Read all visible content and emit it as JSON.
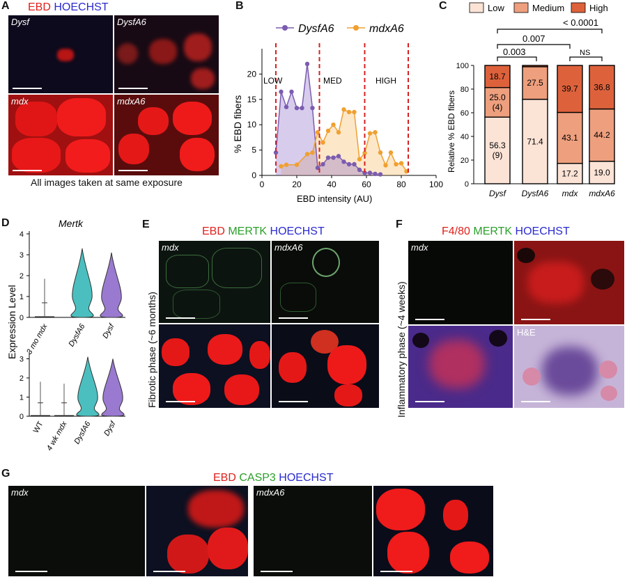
{
  "panelA": {
    "label": "A",
    "title_parts": [
      {
        "text": "EBD",
        "color": "#e0201b"
      },
      {
        "text": " HOECHST",
        "color": "#2a2ad0"
      }
    ],
    "images": [
      "Dysf",
      "DysfA6",
      "mdx",
      "mdxA6"
    ],
    "caption": "All images taken at same exposure"
  },
  "panelB": {
    "label": "B",
    "legend": [
      {
        "name": "DysfA6",
        "color": "#7b5cb0"
      },
      {
        "name": "mdxA6",
        "color": "#f0a030"
      }
    ],
    "zones": [
      "LOW",
      "MED",
      "HIGH"
    ],
    "xlabel": "EBD intensity (AU)",
    "ylabel": "% EBD fibers"
  },
  "panelC": {
    "label": "C",
    "legend": [
      {
        "name": "Low",
        "color": "#fbe3d6"
      },
      {
        "name": "Medium",
        "color": "#ee9f7e"
      },
      {
        "name": "High",
        "color": "#dd623c"
      }
    ],
    "ylabel": "Relative % EBD fibers",
    "brackets": [
      {
        "text": "< 0.0001"
      },
      {
        "text": "0.007"
      },
      {
        "text": "0.003"
      },
      {
        "text": "NS"
      }
    ]
  },
  "panelD": {
    "label": "D",
    "title": "Mertk",
    "ylabel": "Expression Level",
    "top_groups": [
      "3 mo mdx",
      "DysfA6",
      "Dysf"
    ],
    "bottom_groups": [
      "WT",
      "4 wk mdx",
      "DysfA6",
      "Dysf"
    ],
    "top_ticks": [
      "0",
      "1",
      "2",
      "3",
      "4"
    ],
    "bottom_ticks": [
      "0",
      "1",
      "2",
      "3"
    ]
  },
  "panelE": {
    "label": "E",
    "title_parts": [
      {
        "text": "EBD",
        "color": "#e0201b"
      },
      {
        "text": " MERTK",
        "color": "#2aa02a"
      },
      {
        "text": " HOECHST",
        "color": "#2a2ad0"
      }
    ],
    "images": [
      "mdx",
      "mdxA6"
    ],
    "side_label": "Fibrotic phase (~6 months)"
  },
  "panelF": {
    "label": "F",
    "title_parts": [
      {
        "text": "F4/80",
        "color": "#e0201b"
      },
      {
        "text": " MERTK",
        "color": "#2aa02a"
      },
      {
        "text": " HOECHST",
        "color": "#2a2ad0"
      }
    ],
    "images": [
      "mdx",
      "H&E"
    ],
    "side_label": "Inflammatory phase (~4 weeks)"
  },
  "panelG": {
    "label": "G",
    "title_parts": [
      {
        "text": "EBD",
        "color": "#e0201b"
      },
      {
        "text": " CASP3",
        "color": "#2aa02a"
      },
      {
        "text": " HOECHST",
        "color": "#2a2ad0"
      }
    ],
    "images": [
      "mdx",
      "mdxA6"
    ]
  },
  "chart_data": [
    {
      "type": "area",
      "xlabel": "EBD intensity (AU)",
      "ylabel": "% EBD fibers",
      "xlim": [
        0,
        100
      ],
      "ylim": [
        0,
        25
      ],
      "xticks": [
        0,
        20,
        40,
        60,
        80,
        100
      ],
      "yticks": [
        0,
        5,
        10,
        15,
        20
      ],
      "thresholds": [
        8,
        33,
        59,
        84
      ],
      "series": [
        {
          "name": "DysfA6",
          "x": [
            8,
            11,
            14,
            17,
            20,
            23,
            26,
            29,
            32,
            35,
            38,
            41,
            44,
            47,
            50,
            53,
            56,
            59,
            62,
            65,
            68
          ],
          "y": [
            4.5,
            16.5,
            13.5,
            16.5,
            13.3,
            13.3,
            22,
            13.3,
            1.5,
            2.2,
            3.5,
            3.5,
            3.8,
            2.7,
            2.2,
            2.2,
            1.1,
            0.5,
            0.5,
            0.3,
            0.2
          ]
        },
        {
          "name": "mdxA6",
          "x": [
            11,
            14,
            20,
            26,
            29,
            32,
            35,
            38,
            41,
            44,
            47,
            50,
            53,
            56,
            59,
            62,
            65,
            68,
            71,
            74,
            77,
            80,
            83
          ],
          "y": [
            1.8,
            2.1,
            2.1,
            4.2,
            4.5,
            8.5,
            6.5,
            8.8,
            10,
            8.5,
            13,
            12.5,
            12.5,
            3.2,
            4.4,
            8.3,
            8.5,
            4.5,
            2,
            4.5,
            2.2,
            2.4,
            0.8
          ]
        }
      ]
    },
    {
      "type": "bar",
      "stacked": true,
      "ylabel": "Relative % EBD fibers",
      "ylim": [
        0,
        100
      ],
      "yticks": [
        0,
        20,
        40,
        60,
        80,
        100
      ],
      "categories": [
        "Dysf",
        "DysfA6",
        "mdx",
        "mdxA6"
      ],
      "series": [
        {
          "name": "Low",
          "values": [
            56.3,
            71.4,
            17.2,
            19.0
          ],
          "labels": [
            "56.3\n(9)",
            "71.4",
            "17.2",
            "19.0"
          ]
        },
        {
          "name": "Medium",
          "values": [
            25.0,
            27.5,
            43.1,
            44.2
          ],
          "labels": [
            "25.0\n(4)",
            "27.5",
            "43.1",
            "44.2"
          ]
        },
        {
          "name": "High",
          "values": [
            18.7,
            1.1,
            39.7,
            36.8
          ],
          "labels": [
            "18.7",
            "",
            "39.7",
            "36.8"
          ]
        }
      ]
    }
  ]
}
